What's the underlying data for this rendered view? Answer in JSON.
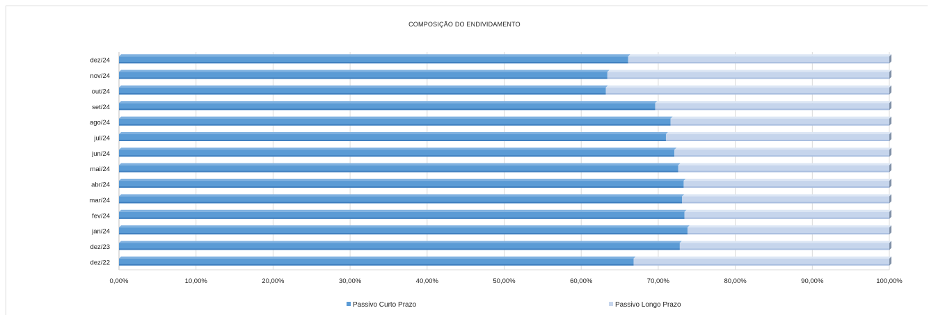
{
  "chart_data": {
    "type": "bar",
    "orientation": "horizontal",
    "stacked": true,
    "title": "COMPOSIÇÃO DO ENDIVIDAMENTO",
    "categories": [
      "dez/24",
      "nov/24",
      "out/24",
      "set/24",
      "ago/24",
      "jul/24",
      "jun/24",
      "mai/24",
      "abr/24",
      "mar/24",
      "fev/24",
      "jan/24",
      "dez/23",
      "dez/22"
    ],
    "series": [
      {
        "name": "Passivo Curto Prazo",
        "color": "#5b9bd5",
        "values": [
          66.1,
          63.4,
          63.2,
          69.6,
          71.6,
          71.0,
          72.1,
          72.6,
          73.3,
          73.1,
          73.4,
          73.8,
          72.8,
          66.8
        ]
      },
      {
        "name": "Passivo Longo Prazo",
        "color": "#c6d5ec",
        "values": [
          33.9,
          36.6,
          36.8,
          30.4,
          28.4,
          29.0,
          27.9,
          27.4,
          26.7,
          26.9,
          26.6,
          26.2,
          27.2,
          33.2
        ]
      }
    ],
    "xlim": [
      0,
      100
    ],
    "xticks": [
      "0,00%",
      "10,00%",
      "20,00%",
      "30,00%",
      "40,00%",
      "50,00%",
      "60,00%",
      "70,00%",
      "80,00%",
      "90,00%",
      "100,00%"
    ],
    "grid": true,
    "legend_position": "bottom"
  }
}
